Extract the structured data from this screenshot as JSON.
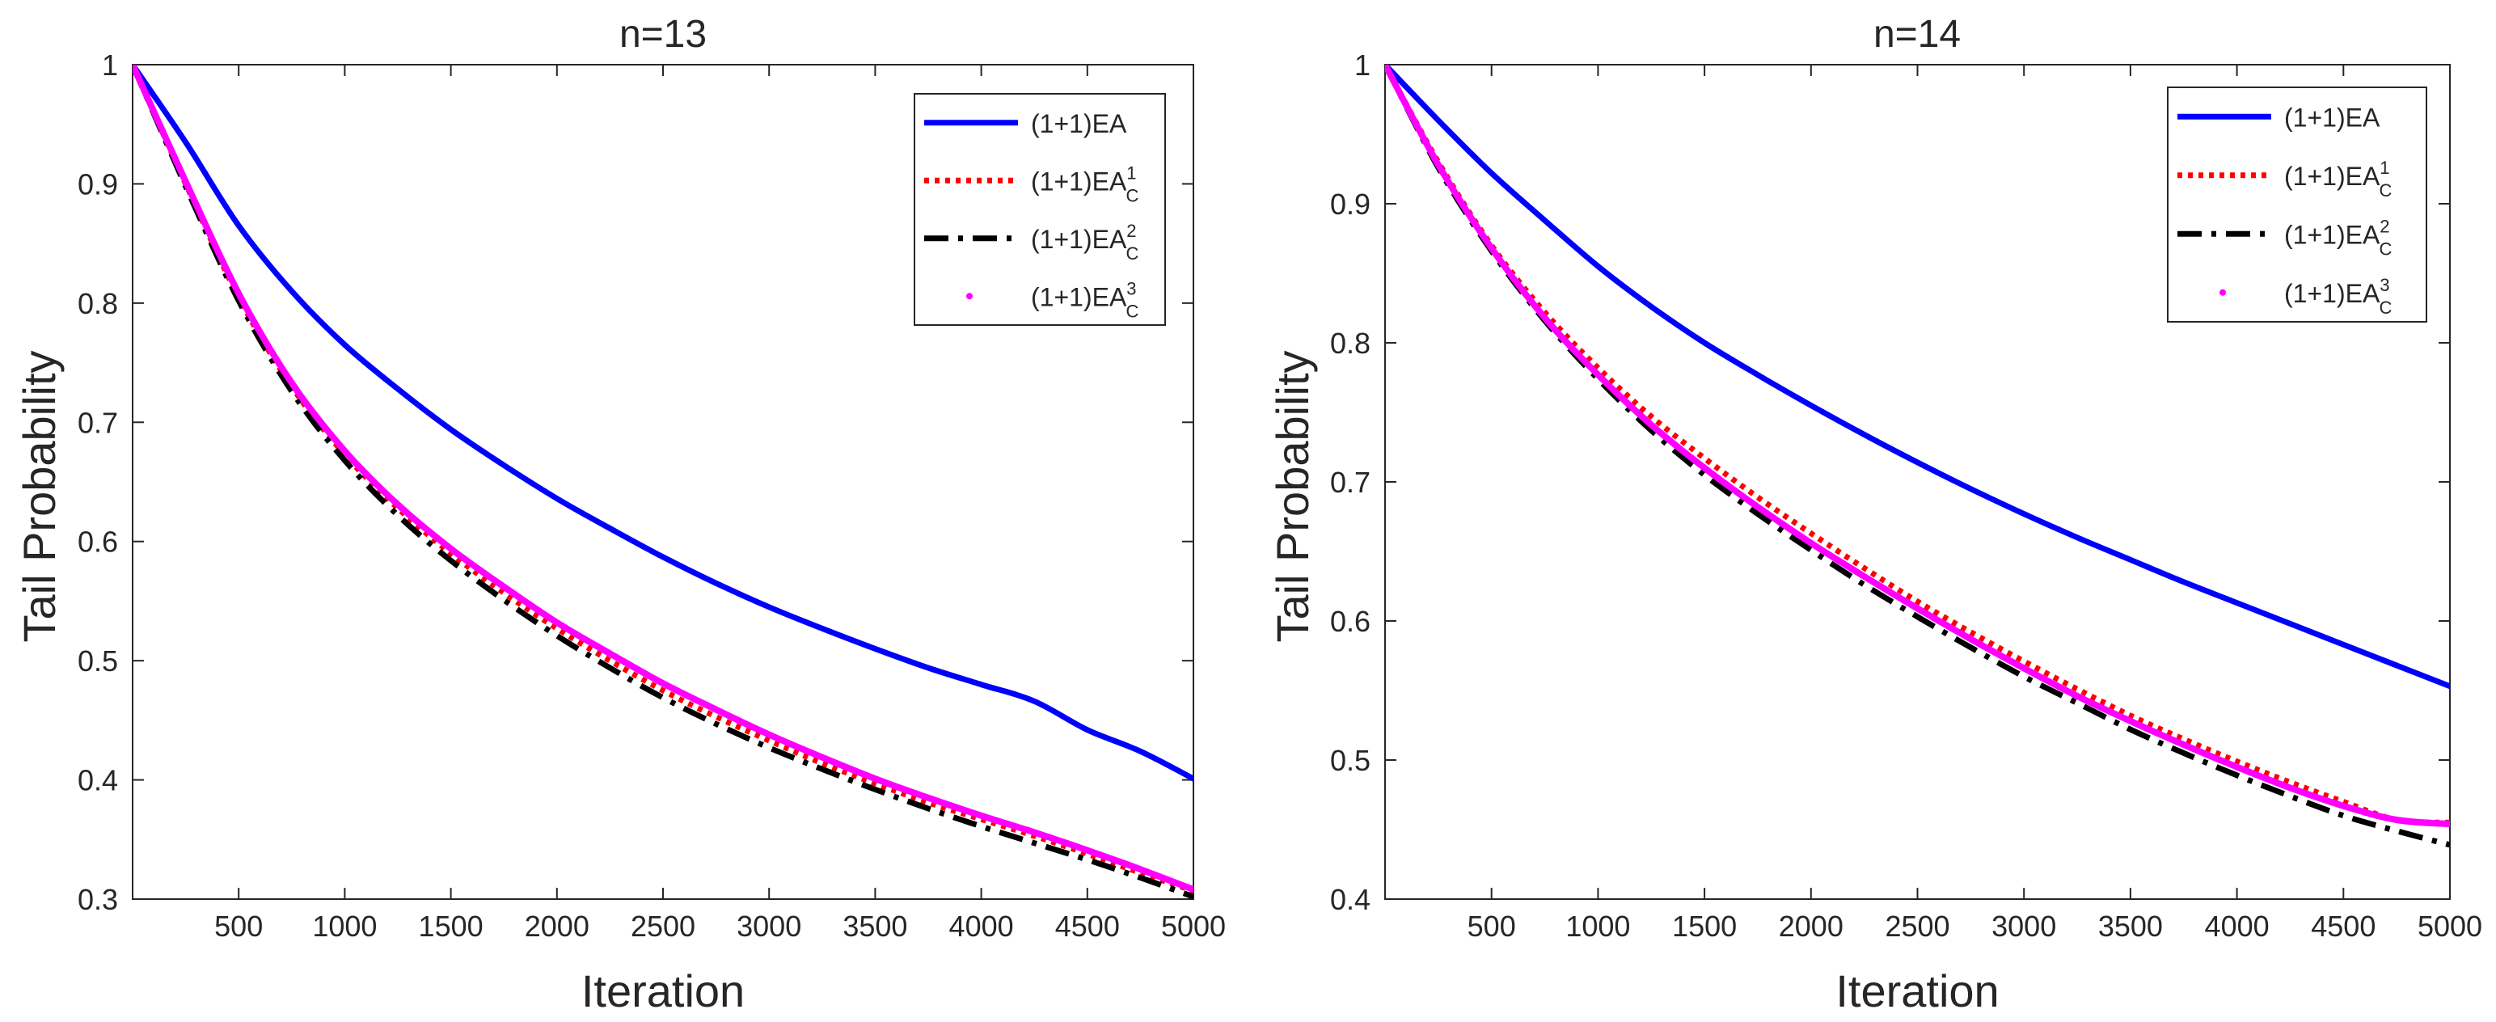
{
  "chart_data": [
    {
      "type": "line",
      "title": "n=13",
      "xlabel": "Iteration",
      "ylabel": "Tail Probability",
      "xlim": [
        0,
        5000
      ],
      "ylim": [
        0.3,
        1
      ],
      "xticks": [
        500,
        1000,
        1500,
        2000,
        2500,
        3000,
        3500,
        4000,
        4500,
        5000
      ],
      "yticks": [
        0.3,
        0.4,
        0.5,
        0.6,
        0.7,
        0.8,
        0.9,
        1
      ],
      "ytick_labels": [
        "0.3",
        "0.4",
        "0.5",
        "0.6",
        "0.7",
        "0.8",
        "0.9",
        "1"
      ],
      "legend_position": "top-right",
      "x": [
        0,
        250,
        500,
        750,
        1000,
        1250,
        1500,
        1750,
        2000,
        2250,
        2500,
        2750,
        3000,
        3250,
        3500,
        3750,
        4000,
        4250,
        4500,
        4750,
        5000
      ],
      "series": [
        {
          "name": "(1+1)EA",
          "base": "(1+1)EA",
          "sup": "",
          "sub": "",
          "color": "#0000ff",
          "style": "solid",
          "values": [
            1.0,
            0.935,
            0.865,
            0.81,
            0.765,
            0.728,
            0.694,
            0.664,
            0.636,
            0.611,
            0.587,
            0.565,
            0.545,
            0.527,
            0.51,
            0.494,
            0.48,
            0.466,
            0.442,
            0.424,
            0.401
          ]
        },
        {
          "name": "(1+1)EA_C^1",
          "base": "(1+1)EA",
          "sup": "1",
          "sub": "C",
          "color": "#ff0000",
          "style": "dotted",
          "values": [
            1.0,
            0.9,
            0.805,
            0.73,
            0.673,
            0.628,
            0.59,
            0.557,
            0.527,
            0.5,
            0.475,
            0.453,
            0.433,
            0.414,
            0.397,
            0.381,
            0.367,
            0.353,
            0.338,
            0.322,
            0.307
          ]
        },
        {
          "name": "(1+1)EA_C^2",
          "base": "(1+1)EA",
          "sup": "2",
          "sub": "C",
          "color": "#000000",
          "style": "dashdot",
          "values": [
            1.0,
            0.898,
            0.802,
            0.726,
            0.668,
            0.622,
            0.584,
            0.551,
            0.521,
            0.494,
            0.469,
            0.447,
            0.427,
            0.409,
            0.392,
            0.376,
            0.361,
            0.347,
            0.333,
            0.318,
            0.302
          ]
        },
        {
          "name": "(1+1)EA_C^3",
          "base": "(1+1)EA",
          "sup": "3",
          "sub": "C",
          "color": "#ff00ff",
          "style": "points",
          "values": [
            1.0,
            0.902,
            0.808,
            0.733,
            0.676,
            0.631,
            0.594,
            0.562,
            0.532,
            0.506,
            0.481,
            0.459,
            0.438,
            0.419,
            0.401,
            0.385,
            0.37,
            0.356,
            0.341,
            0.325,
            0.308
          ]
        }
      ]
    },
    {
      "type": "line",
      "title": "n=14",
      "xlabel": "Iteration",
      "ylabel": "Tail Probability",
      "xlim": [
        0,
        5000
      ],
      "ylim": [
        0.4,
        1
      ],
      "xticks": [
        500,
        1000,
        1500,
        2000,
        2500,
        3000,
        3500,
        4000,
        4500,
        5000
      ],
      "yticks": [
        0.4,
        0.5,
        0.6,
        0.7,
        0.8,
        0.9,
        1
      ],
      "ytick_labels": [
        "0.4",
        "0.5",
        "0.6",
        "0.7",
        "0.8",
        "0.9",
        "1"
      ],
      "legend_position": "top-right",
      "x": [
        0,
        250,
        500,
        750,
        1000,
        1250,
        1500,
        1750,
        2000,
        2250,
        2500,
        2750,
        3000,
        3250,
        3500,
        3750,
        4000,
        4250,
        4500,
        4750,
        5000
      ],
      "series": [
        {
          "name": "(1+1)EA",
          "base": "(1+1)EA",
          "sup": "",
          "sub": "",
          "color": "#0000ff",
          "style": "solid",
          "values": [
            1.0,
            0.96,
            0.922,
            0.888,
            0.855,
            0.826,
            0.8,
            0.777,
            0.755,
            0.734,
            0.714,
            0.695,
            0.677,
            0.66,
            0.644,
            0.628,
            0.613,
            0.598,
            0.583,
            0.568,
            0.553
          ]
        },
        {
          "name": "(1+1)EA_C^1",
          "base": "(1+1)EA",
          "sup": "1",
          "sub": "C",
          "color": "#ff0000",
          "style": "dotted",
          "values": [
            1.0,
            0.93,
            0.87,
            0.822,
            0.782,
            0.747,
            0.717,
            0.689,
            0.663,
            0.638,
            0.614,
            0.592,
            0.571,
            0.551,
            0.532,
            0.515,
            0.499,
            0.484,
            0.47,
            0.457,
            0.455
          ]
        },
        {
          "name": "(1+1)EA_C^2",
          "base": "(1+1)EA",
          "sup": "2",
          "sub": "C",
          "color": "#000000",
          "style": "dashdot",
          "values": [
            1.0,
            0.926,
            0.866,
            0.816,
            0.774,
            0.737,
            0.705,
            0.677,
            0.651,
            0.626,
            0.603,
            0.581,
            0.56,
            0.541,
            0.522,
            0.505,
            0.489,
            0.474,
            0.46,
            0.449,
            0.439
          ]
        },
        {
          "name": "(1+1)EA_C^3",
          "base": "(1+1)EA",
          "sup": "3",
          "sub": "C",
          "color": "#ff00ff",
          "style": "points",
          "values": [
            1.0,
            0.928,
            0.868,
            0.818,
            0.777,
            0.741,
            0.71,
            0.682,
            0.656,
            0.632,
            0.609,
            0.587,
            0.566,
            0.546,
            0.528,
            0.511,
            0.495,
            0.48,
            0.467,
            0.457,
            0.454
          ]
        }
      ]
    }
  ]
}
